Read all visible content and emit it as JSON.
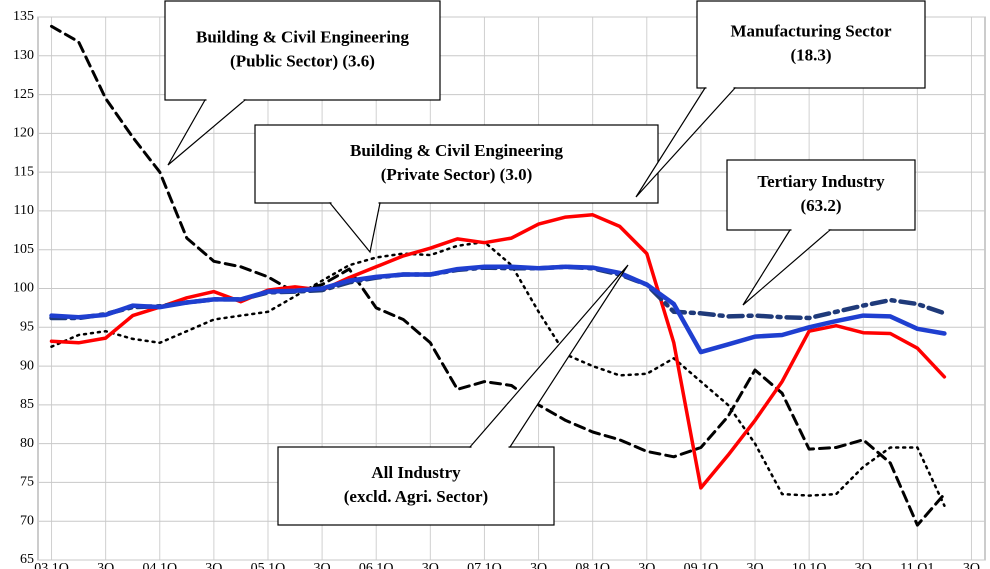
{
  "chart_data": {
    "type": "line",
    "categories": [
      "03 1Q",
      null,
      "3Q",
      null,
      "04 1Q",
      null,
      "3Q",
      null,
      "05 1Q",
      null,
      "3Q",
      null,
      "06 1Q",
      null,
      "3Q",
      null,
      "07 1Q",
      null,
      "3Q",
      null,
      "08 1Q",
      null,
      "3Q",
      null,
      "09 1Q",
      null,
      "3Q",
      null,
      "10 1Q",
      null,
      "3Q",
      null,
      "11 Q1",
      null,
      "3Q"
    ],
    "ylim": [
      65,
      135
    ],
    "yticks": [
      65,
      70,
      75,
      80,
      85,
      90,
      95,
      100,
      105,
      110,
      115,
      120,
      125,
      130,
      135
    ],
    "grid": true,
    "series": [
      {
        "color": "#000000",
        "dash": "dashed",
        "width": 3,
        "values": [
          133.8,
          131.8,
          124.5,
          119.5,
          115,
          106.5,
          103.5,
          102.8,
          101.5,
          99.5,
          100.5,
          102.5,
          97.5,
          96,
          93,
          87,
          88,
          87.5,
          85,
          83,
          81.5,
          80.5,
          79,
          78.3,
          79.5,
          83.5,
          89.5,
          86.5,
          79.3,
          79.5,
          80.5,
          77.5,
          69.5,
          73.5,
          null
        ]
      },
      {
        "color": "#000000",
        "dash": "dotted",
        "width": 2.5,
        "values": [
          92.5,
          94,
          94.5,
          93.5,
          93,
          94.5,
          96,
          96.5,
          97,
          99,
          101,
          103,
          104,
          104.5,
          104.3,
          105.5,
          106,
          103,
          97,
          91.5,
          90,
          88.8,
          89,
          91,
          88,
          85,
          80,
          73.5,
          73.3,
          73.5,
          77,
          79.5,
          79.5,
          72,
          null
        ]
      },
      {
        "color": "#ff0000",
        "dash": "solid",
        "width": 3.5,
        "values": [
          93.2,
          93,
          93.6,
          96.5,
          97.6,
          98.8,
          99.6,
          98.3,
          99.8,
          100.2,
          99.8,
          101.4,
          102.8,
          104.2,
          105.2,
          106.4,
          105.9,
          106.5,
          108.3,
          109.2,
          109.5,
          108,
          104.5,
          93,
          74.3,
          78.5,
          83,
          88,
          94.5,
          95.2,
          94.3,
          94.2,
          92.3,
          88.6,
          null
        ]
      },
      {
        "color": "#1f3a7a",
        "dash": "dashdot",
        "width": 4.5,
        "values": [
          96.2,
          96.2,
          96.7,
          97.6,
          97.7,
          98.2,
          98.6,
          98.6,
          99.5,
          99.6,
          99.8,
          100.8,
          101.4,
          101.8,
          101.8,
          102.4,
          102.7,
          102.6,
          102.6,
          102.8,
          102.6,
          101.8,
          100.5,
          97,
          96.8,
          96.4,
          96.5,
          96.3,
          96.2,
          97,
          97.8,
          98.5,
          98,
          96.8,
          null
        ]
      },
      {
        "color": "#1f3fd0",
        "dash": "solid",
        "width": 4.5,
        "values": [
          96.5,
          96.3,
          96.6,
          97.8,
          97.6,
          98.2,
          98.6,
          98.6,
          99.6,
          99.7,
          100,
          101,
          101.5,
          101.8,
          101.8,
          102.5,
          102.8,
          102.8,
          102.6,
          102.8,
          102.7,
          102,
          100.5,
          98,
          91.8,
          92.8,
          93.8,
          94,
          95,
          95.8,
          96.5,
          96.4,
          94.8,
          94.2,
          null
        ]
      }
    ],
    "annotations": [
      {
        "lines": [
          "Building & Civil Engineering",
          "(Public Sector) (3.6)"
        ]
      },
      {
        "lines": [
          "Building & Civil Engineering",
          "(Private Sector) (3.0)"
        ]
      },
      {
        "lines": [
          "Manufacturing Sector",
          "(18.3)"
        ]
      },
      {
        "lines": [
          "Tertiary Industry",
          "(63.2)"
        ]
      },
      {
        "lines": [
          "All Industry",
          "(excld. Agri. Sector)"
        ]
      }
    ]
  }
}
